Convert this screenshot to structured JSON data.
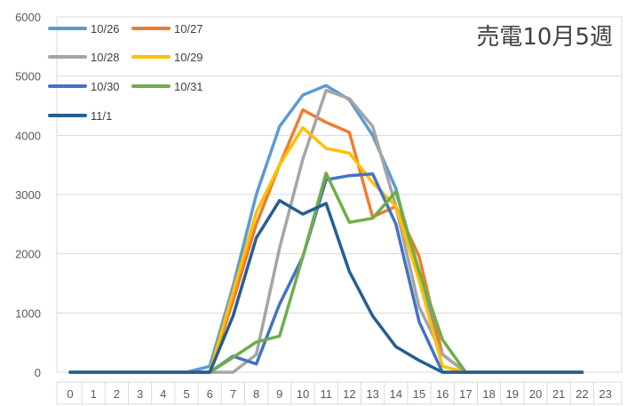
{
  "chart_data": {
    "type": "line",
    "title": "売電10月5週",
    "x": [
      0,
      1,
      2,
      3,
      4,
      5,
      6,
      7,
      8,
      9,
      10,
      11,
      12,
      13,
      14,
      15,
      16,
      17,
      18,
      19,
      20,
      21,
      22,
      23
    ],
    "ylim": [
      0,
      6000
    ],
    "yticks": [
      0,
      1000,
      2000,
      3000,
      4000,
      5000,
      6000
    ],
    "grid": "horizontal",
    "legend_position": "top-left",
    "series": [
      {
        "name": "10/26",
        "color": "#5B9BD5",
        "values": [
          0,
          0,
          0,
          0,
          0,
          0,
          100,
          1450,
          3000,
          4150,
          4680,
          4840,
          4600,
          4000,
          3100,
          1600,
          300,
          0,
          0,
          0,
          0,
          0,
          0,
          null
        ]
      },
      {
        "name": "10/27",
        "color": "#ED7D31",
        "values": [
          0,
          0,
          0,
          0,
          0,
          0,
          0,
          1200,
          2500,
          3500,
          4430,
          4220,
          4050,
          2620,
          2800,
          1950,
          300,
          0,
          0,
          0,
          0,
          0,
          0,
          null
        ]
      },
      {
        "name": "10/28",
        "color": "#A5A5A5",
        "values": [
          0,
          0,
          0,
          0,
          0,
          0,
          0,
          0,
          300,
          2100,
          3600,
          4760,
          4620,
          4150,
          2800,
          1100,
          300,
          0,
          0,
          0,
          0,
          0,
          0,
          null
        ]
      },
      {
        "name": "10/29",
        "color": "#FFC000",
        "values": [
          0,
          0,
          0,
          0,
          0,
          0,
          0,
          1350,
          2700,
          3500,
          4130,
          3780,
          3700,
          3200,
          2800,
          1550,
          100,
          0,
          0,
          0,
          0,
          0,
          0,
          null
        ]
      },
      {
        "name": "10/30",
        "color": "#4472C4",
        "values": [
          0,
          0,
          0,
          0,
          0,
          0,
          0,
          270,
          140,
          1150,
          1950,
          3250,
          3320,
          3350,
          2500,
          850,
          0,
          0,
          0,
          0,
          0,
          0,
          0,
          null
        ]
      },
      {
        "name": "10/31",
        "color": "#70AD47",
        "values": [
          0,
          0,
          0,
          0,
          0,
          0,
          0,
          250,
          510,
          610,
          1950,
          3360,
          2530,
          2600,
          3050,
          1700,
          550,
          0,
          0,
          0,
          0,
          0,
          0,
          null
        ]
      },
      {
        "name": "11/1",
        "color": "#255E91",
        "values": [
          0,
          0,
          0,
          0,
          0,
          0,
          0,
          950,
          2270,
          2900,
          2670,
          2850,
          1700,
          950,
          430,
          200,
          0,
          0,
          0,
          0,
          0,
          0,
          0,
          null
        ]
      }
    ]
  }
}
